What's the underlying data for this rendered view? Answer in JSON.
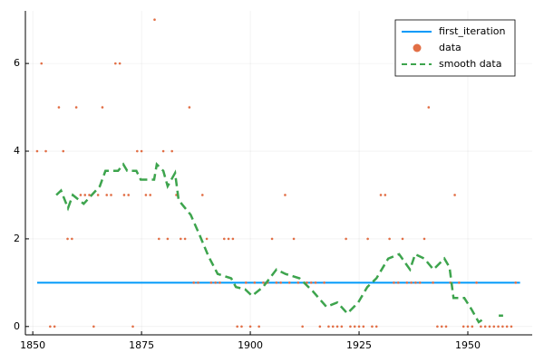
{
  "chart_data": {
    "type": "line",
    "series": [
      {
        "name": "first_iteration",
        "color": "#009af9",
        "kind": "line",
        "dash": false,
        "x": [
          1851,
          1962
        ],
        "values": [
          1,
          1
        ]
      },
      {
        "name": "data",
        "color": "#e26f46",
        "kind": "scatter",
        "x": [
          1851,
          1852,
          1853,
          1854,
          1855,
          1856,
          1857,
          1858,
          1859,
          1860,
          1861,
          1862,
          1863,
          1864,
          1865,
          1866,
          1867,
          1868,
          1869,
          1870,
          1871,
          1872,
          1873,
          1874,
          1875,
          1876,
          1877,
          1878,
          1879,
          1880,
          1881,
          1882,
          1883,
          1884,
          1885,
          1886,
          1887,
          1888,
          1889,
          1890,
          1891,
          1892,
          1893,
          1894,
          1895,
          1896,
          1897,
          1898,
          1899,
          1900,
          1901,
          1902,
          1903,
          1904,
          1905,
          1906,
          1907,
          1908,
          1909,
          1910,
          1911,
          1912,
          1913,
          1914,
          1915,
          1916,
          1917,
          1918,
          1919,
          1920,
          1921,
          1922,
          1923,
          1924,
          1925,
          1926,
          1927,
          1928,
          1929,
          1930,
          1931,
          1932,
          1933,
          1934,
          1935,
          1936,
          1937,
          1938,
          1939,
          1940,
          1941,
          1942,
          1943,
          1944,
          1945,
          1946,
          1947,
          1948,
          1949,
          1950,
          1951,
          1952,
          1953,
          1954,
          1955,
          1956,
          1957,
          1958,
          1959,
          1960,
          1961
        ],
        "values": [
          4,
          6,
          4,
          0,
          0,
          5,
          4,
          2,
          2,
          5,
          3,
          3,
          3,
          0,
          3,
          5,
          3,
          3,
          6,
          6,
          3,
          3,
          0,
          4,
          4,
          3,
          3,
          7,
          2,
          4,
          2,
          4,
          3,
          2,
          2,
          5,
          1,
          1,
          3,
          2,
          1,
          1,
          1,
          2,
          2,
          2,
          0,
          0,
          1,
          0,
          1,
          0,
          1,
          1,
          2,
          1,
          1,
          3,
          1,
          2,
          1,
          0,
          1,
          1,
          1,
          0,
          1,
          0,
          0,
          0,
          0,
          2,
          0,
          0,
          0,
          0,
          2,
          0,
          0,
          3,
          3,
          2,
          1,
          1,
          2,
          1,
          1,
          1,
          1,
          2,
          5,
          1,
          0,
          0,
          0,
          1,
          3,
          1,
          0,
          0,
          0,
          1,
          0,
          0,
          0,
          0,
          0,
          0,
          0,
          0,
          1
        ]
      },
      {
        "name": "smooth data",
        "color": "#3da44d",
        "kind": "line",
        "dash": true,
        "x": [
          1855.4,
          1856.5,
          1858.1,
          1859.2,
          1861.7,
          1865.4,
          1866.7,
          1869.6,
          1870.8,
          1871.7,
          1873.8,
          1874.8,
          1877.9,
          1878.5,
          1880,
          1881,
          1882.7,
          1883.5,
          1884.2,
          1886.3,
          1888.3,
          1890.4,
          1892.5,
          1895.6,
          1896.7,
          1898.8,
          1900.4,
          1902.9,
          1906,
          1908.1,
          1911.3,
          1914.4,
          1917.5,
          1920,
          1922.3,
          1924.8,
          1926.9,
          1929,
          1931.7,
          1934.2,
          1936.7,
          1937.9,
          1940,
          1942.1,
          1944.6,
          1945.8,
          1946.7,
          1949.2,
          1950.8,
          1952.5,
          1954,
          1956,
          1957.1,
          1958.1
        ],
        "values": [
          3.0,
          3.1,
          2.7,
          3.0,
          2.8,
          3.2,
          3.55,
          3.55,
          3.7,
          3.55,
          3.55,
          3.35,
          3.35,
          3.7,
          3.55,
          3.2,
          3.5,
          2.9,
          2.8,
          2.55,
          2.1,
          1.6,
          1.2,
          1.1,
          0.9,
          0.85,
          0.7,
          0.9,
          1.3,
          1.2,
          1.1,
          0.8,
          0.45,
          0.55,
          0.3,
          0.55,
          0.9,
          1.1,
          1.55,
          1.65,
          1.3,
          1.65,
          1.55,
          1.3,
          1.55,
          1.35,
          0.65,
          0.65,
          0.4,
          0.1,
          0.2,
          null,
          0.25,
          0.25
        ]
      }
    ],
    "xlim": [
      1848.3,
      1964.8
    ],
    "xticks": [
      1850,
      1875,
      1900,
      1925,
      1950
    ],
    "ylim": [
      -0.19,
      7.2
    ],
    "yticks": [
      0,
      2,
      4,
      6
    ],
    "grid": true,
    "legend": "top-right"
  }
}
